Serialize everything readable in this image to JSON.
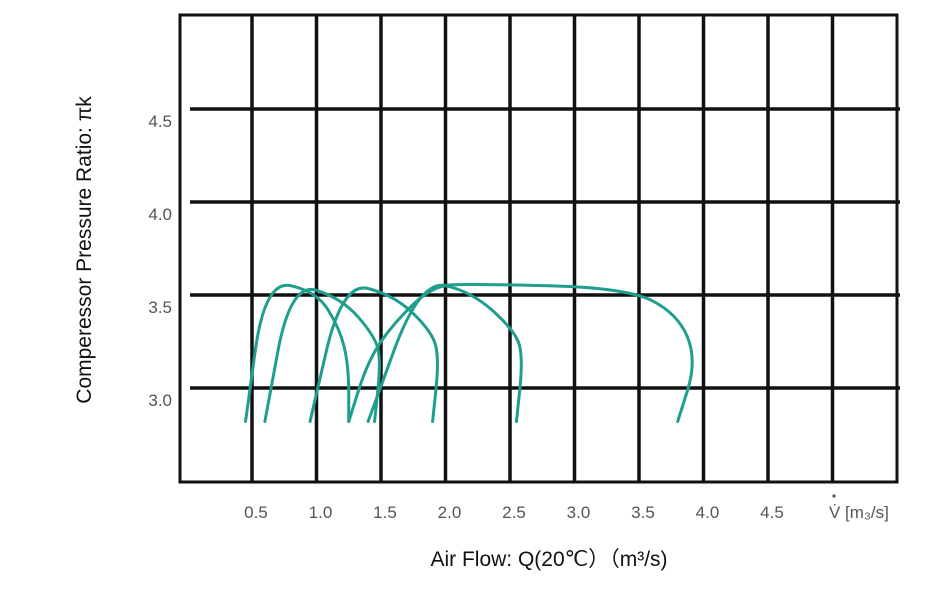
{
  "chart_data": {
    "type": "line",
    "xlabel": "Air Flow: Q(20℃）（m³/s)",
    "ylabel": "Comperessor Pressure Ratio: πk",
    "x_axis_unit_label": "V̇ [m₃/s]",
    "x_ticks": [
      "0.5",
      "1.0",
      "1.5",
      "2.0",
      "2.5",
      "3.0",
      "3.5",
      "4.0",
      "4.5"
    ],
    "y_ticks": [
      "3.0",
      "3.5",
      "4.0",
      "4.5"
    ],
    "xlim": [
      0.0,
      5.45
    ],
    "ylim": [
      2.55,
      5.0
    ],
    "grid": true,
    "line_color": "#1f9e8e",
    "series": [
      {
        "points": [
          [
            0.45,
            2.82
          ],
          [
            0.6,
            3.58
          ],
          [
            1.0,
            3.52
          ],
          [
            1.18,
            3.32
          ],
          [
            1.25,
            3.12
          ],
          [
            1.25,
            2.82
          ]
        ]
      },
      {
        "points": [
          [
            0.6,
            2.82
          ],
          [
            0.8,
            3.57
          ],
          [
            1.2,
            3.48
          ],
          [
            1.45,
            3.28
          ],
          [
            1.5,
            3.15
          ],
          [
            1.45,
            2.82
          ]
        ]
      },
      {
        "points": [
          [
            0.95,
            2.82
          ],
          [
            1.2,
            3.57
          ],
          [
            1.6,
            3.5
          ],
          [
            1.9,
            3.3
          ],
          [
            1.95,
            3.15
          ],
          [
            1.9,
            2.82
          ]
        ]
      },
      {
        "points": [
          [
            1.4,
            2.82
          ],
          [
            1.8,
            3.58
          ],
          [
            2.2,
            3.52
          ],
          [
            2.55,
            3.3
          ],
          [
            2.6,
            3.15
          ],
          [
            2.55,
            2.82
          ]
        ]
      },
      {
        "points": [
          [
            3.8,
            2.82
          ],
          [
            3.95,
            3.15
          ],
          [
            3.8,
            3.4
          ],
          [
            3.4,
            3.54
          ],
          [
            2.2,
            3.56
          ],
          [
            1.9,
            3.55
          ],
          [
            1.6,
            3.35
          ],
          [
            1.4,
            3.15
          ],
          [
            1.25,
            2.82
          ]
        ]
      }
    ]
  }
}
